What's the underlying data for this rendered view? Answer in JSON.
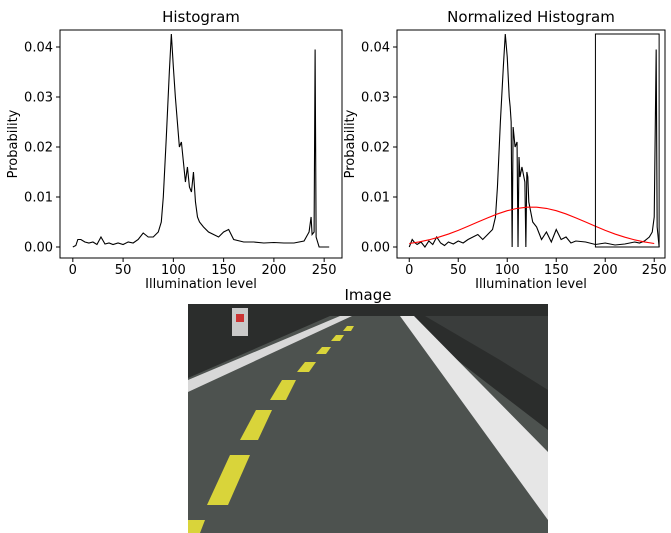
{
  "chart_data": [
    {
      "type": "line",
      "title": "Histogram",
      "xlabel": "Illumination level",
      "ylabel": "Probability",
      "xlim": [
        -12.75,
        267.75
      ],
      "ylim": [
        -0.0022,
        0.0434
      ],
      "xticks": [
        0,
        50,
        100,
        150,
        200,
        250
      ],
      "yticks": [
        {
          "value": 0,
          "label": "0.00"
        },
        0.01,
        0.02,
        0.03,
        0.04
      ],
      "series": [
        {
          "color": "#000000",
          "x": [
            0,
            3,
            5,
            8,
            12,
            16,
            20,
            24,
            28,
            32,
            36,
            40,
            45,
            50,
            55,
            60,
            65,
            70,
            75,
            80,
            85,
            88,
            90,
            93,
            96,
            98,
            100,
            102,
            104,
            106,
            108,
            110,
            112,
            114,
            116,
            118,
            120,
            122,
            124,
            126,
            130,
            135,
            140,
            145,
            150,
            155,
            160,
            170,
            180,
            190,
            200,
            210,
            220,
            230,
            235,
            237,
            238,
            240,
            241,
            242,
            245,
            250,
            255
          ],
          "values": [
            0,
            0.0003,
            0.0015,
            0.0015,
            0.001,
            0.0008,
            0.001,
            0.0005,
            0.002,
            0.0006,
            0.0008,
            0.0005,
            0.0008,
            0.0005,
            0.001,
            0.0008,
            0.0015,
            0.0028,
            0.002,
            0.002,
            0.003,
            0.005,
            0.01,
            0.022,
            0.035,
            0.0426,
            0.036,
            0.03,
            0.025,
            0.02,
            0.021,
            0.017,
            0.013,
            0.016,
            0.012,
            0.011,
            0.015,
            0.009,
            0.006,
            0.005,
            0.004,
            0.003,
            0.0025,
            0.002,
            0.003,
            0.0035,
            0.0015,
            0.001,
            0.001,
            0.0008,
            0.0009,
            0.0008,
            0.0008,
            0.0012,
            0.003,
            0.006,
            0.0025,
            0.003,
            0.0395,
            0.002,
            0,
            0,
            0
          ]
        }
      ]
    },
    {
      "type": "line",
      "title": "Normalized Histogram",
      "xlabel": "Illumination level",
      "ylabel": "Probability",
      "xlim": [
        -12.5,
        261
      ],
      "ylim": [
        -0.0022,
        0.0434
      ],
      "xticks": [
        0,
        50,
        100,
        150,
        200,
        250
      ],
      "yticks": [
        {
          "value": 0,
          "label": "0.00"
        },
        0.01,
        0.02,
        0.03,
        0.04
      ],
      "rectangle": {
        "x": [
          190,
          255
        ],
        "y": [
          0,
          0.0426
        ],
        "color": "#000000"
      },
      "series": [
        {
          "color": "#000000",
          "x": [
            0,
            3,
            5,
            8,
            12,
            16,
            20,
            24,
            28,
            32,
            36,
            40,
            45,
            50,
            55,
            60,
            65,
            70,
            75,
            80,
            85,
            88,
            90,
            93,
            96,
            98,
            100,
            102,
            103,
            104,
            105,
            106,
            108,
            110,
            111,
            112,
            113,
            115,
            118,
            119,
            120,
            121,
            122,
            124,
            126,
            130,
            135,
            140,
            145,
            150,
            155,
            160,
            165,
            170,
            180,
            190,
            200,
            210,
            220,
            230,
            235,
            240,
            245,
            248,
            250,
            252,
            253,
            255
          ],
          "values": [
            0,
            0.0015,
            0.001,
            0.0005,
            0.001,
            0,
            0.0012,
            0.0005,
            0.002,
            0.0008,
            0.0003,
            0.001,
            0.0006,
            0.0012,
            0.0008,
            0.0015,
            0.002,
            0.0025,
            0.0015,
            0.0025,
            0.0035,
            0.006,
            0.012,
            0.025,
            0.036,
            0.0426,
            0.038,
            0.03,
            0.028,
            0.025,
            0,
            0.024,
            0.02,
            0.021,
            0,
            0.018,
            0.014,
            0.016,
            0.013,
            0,
            0.015,
            0.014,
            0.009,
            0.007,
            0.005,
            0.004,
            0.0015,
            0.003,
            0.001,
            0.0035,
            0.0015,
            0.002,
            0.0008,
            0.0012,
            0.001,
            0.0005,
            0.0008,
            0.0004,
            0.0006,
            0.001,
            0.0008,
            0.0012,
            0.002,
            0.003,
            0.006,
            0.0395,
            0.004,
            0
          ]
        },
        {
          "color": "#ff0000",
          "x": [
            0,
            10,
            20,
            30,
            40,
            50,
            60,
            70,
            80,
            90,
            100,
            110,
            120,
            130,
            140,
            150,
            160,
            170,
            180,
            190,
            200,
            210,
            220,
            230,
            240,
            250
          ],
          "values": [
            0.0007,
            0.00102,
            0.00143,
            0.00196,
            0.00259,
            0.00333,
            0.00414,
            0.00499,
            0.00583,
            0.00661,
            0.00726,
            0.00772,
            0.00797,
            0.00797,
            0.00772,
            0.00726,
            0.00661,
            0.00583,
            0.00499,
            0.00414,
            0.00333,
            0.00259,
            0.00196,
            0.00143,
            0.00102,
            0.0007
          ]
        }
      ]
    }
  ],
  "image": {
    "title": "Image"
  }
}
